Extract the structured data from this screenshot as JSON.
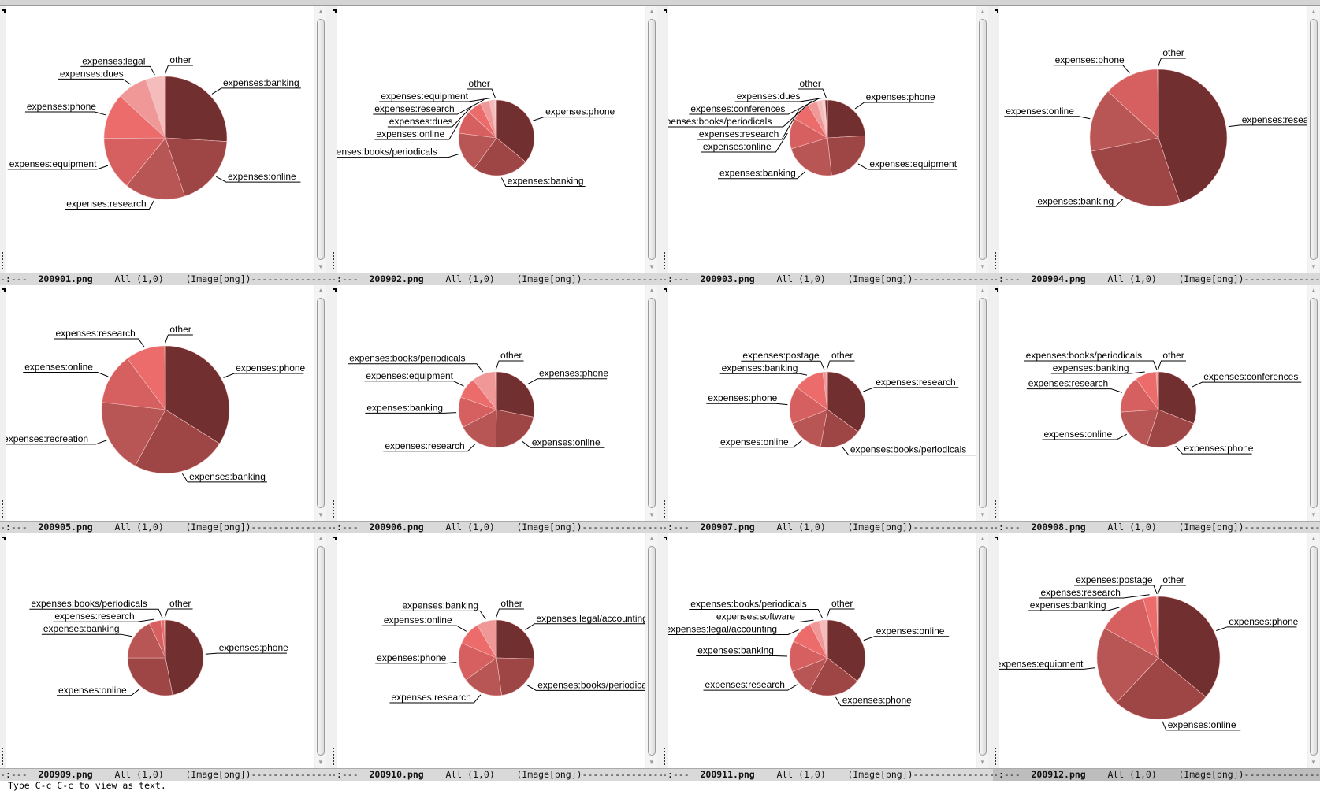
{
  "window": {
    "title": ""
  },
  "palette": [
    "#722f30",
    "#9e4646",
    "#b85555",
    "#d66060",
    "#ec6b6b",
    "#f09898",
    "#f5bcbc",
    "#f8d0d0"
  ],
  "echo_area": "Type C-c C-c to view as text.",
  "panels": [
    {
      "file": "200901.png",
      "mode_prefix": "-:---",
      "position": "All (1,0)",
      "mode": "(Image[png])",
      "active": false,
      "chart_data": {
        "type": "pie",
        "slices": [
          {
            "label": "expenses:banking",
            "value": 26
          },
          {
            "label": "expenses:online",
            "value": 19
          },
          {
            "label": "expenses:research",
            "value": 16
          },
          {
            "label": "expenses:equipment",
            "value": 14
          },
          {
            "label": "expenses:phone",
            "value": 12
          },
          {
            "label": "expenses:dues",
            "value": 8
          },
          {
            "label": "expenses:legal",
            "value": 5
          },
          {
            "label": "other",
            "value": 0.2
          }
        ]
      }
    },
    {
      "file": "200902.png",
      "mode_prefix": "-:---",
      "position": "All (1,0)",
      "mode": "(Image[png])",
      "active": false,
      "chart_data": {
        "type": "pie",
        "slices": [
          {
            "label": "expenses:phone",
            "value": 36
          },
          {
            "label": "expenses:banking",
            "value": 24
          },
          {
            "label": "expenses:books/periodicals",
            "value": 17
          },
          {
            "label": "expenses:online",
            "value": 10
          },
          {
            "label": "expenses:dues",
            "value": 6
          },
          {
            "label": "expenses:research",
            "value": 4
          },
          {
            "label": "expenses:equipment",
            "value": 2
          },
          {
            "label": "other",
            "value": 1
          }
        ]
      }
    },
    {
      "file": "200903.png",
      "mode_prefix": "-:---",
      "position": "All (1,0)",
      "mode": "(Image[png])",
      "active": false,
      "chart_data": {
        "type": "pie",
        "slices": [
          {
            "label": "expenses:phone",
            "value": 24
          },
          {
            "label": "expenses:equipment",
            "value": 24
          },
          {
            "label": "expenses:banking",
            "value": 22
          },
          {
            "label": "expenses:online",
            "value": 13
          },
          {
            "label": "expenses:research",
            "value": 8
          },
          {
            "label": "expenses:books/periodicals",
            "value": 4
          },
          {
            "label": "expenses:conferences",
            "value": 2
          },
          {
            "label": "expenses:dues",
            "value": 1.5
          },
          {
            "label": "other",
            "value": 1
          }
        ]
      }
    },
    {
      "file": "200904.png",
      "mode_prefix": "-:---",
      "position": "All (1,0)",
      "mode": "(Image[png])",
      "active": false,
      "chart_data": {
        "type": "pie",
        "slices": [
          {
            "label": "expenses:research",
            "value": 45
          },
          {
            "label": "expenses:banking",
            "value": 27
          },
          {
            "label": "expenses:online",
            "value": 15
          },
          {
            "label": "expenses:phone",
            "value": 13
          },
          {
            "label": "other",
            "value": 0.2
          }
        ]
      }
    },
    {
      "file": "200905.png",
      "mode_prefix": "-:---",
      "position": "All (1,0)",
      "mode": "(Image[png])",
      "active": false,
      "chart_data": {
        "type": "pie",
        "slices": [
          {
            "label": "expenses:phone",
            "value": 34
          },
          {
            "label": "expenses:banking",
            "value": 24
          },
          {
            "label": "expenses:recreation",
            "value": 19
          },
          {
            "label": "expenses:online",
            "value": 13
          },
          {
            "label": "expenses:research",
            "value": 10
          },
          {
            "label": "other",
            "value": 0.2
          }
        ]
      }
    },
    {
      "file": "200906.png",
      "mode_prefix": "-:---",
      "position": "All (1,0)",
      "mode": "(Image[png])",
      "active": false,
      "chart_data": {
        "type": "pie",
        "slices": [
          {
            "label": "expenses:phone",
            "value": 28
          },
          {
            "label": "expenses:online",
            "value": 22
          },
          {
            "label": "expenses:research",
            "value": 17
          },
          {
            "label": "expenses:banking",
            "value": 13
          },
          {
            "label": "expenses:equipment",
            "value": 9
          },
          {
            "label": "expenses:books/periodicals",
            "value": 10
          },
          {
            "label": "other",
            "value": 0.5
          }
        ]
      }
    },
    {
      "file": "200907.png",
      "mode_prefix": "-:---",
      "position": "All (1,0)",
      "mode": "(Image[png])",
      "active": false,
      "chart_data": {
        "type": "pie",
        "slices": [
          {
            "label": "expenses:research",
            "value": 35
          },
          {
            "label": "expenses:books/periodicals",
            "value": 18
          },
          {
            "label": "expenses:online",
            "value": 16
          },
          {
            "label": "expenses:phone",
            "value": 16
          },
          {
            "label": "expenses:banking",
            "value": 13
          },
          {
            "label": "expenses:postage",
            "value": 1.5
          },
          {
            "label": "other",
            "value": 0.5
          }
        ]
      }
    },
    {
      "file": "200908.png",
      "mode_prefix": "-:---",
      "position": "All (1,0)",
      "mode": "(Image[png])",
      "active": false,
      "chart_data": {
        "type": "pie",
        "slices": [
          {
            "label": "expenses:conferences",
            "value": 31
          },
          {
            "label": "expenses:phone",
            "value": 24
          },
          {
            "label": "expenses:online",
            "value": 19
          },
          {
            "label": "expenses:research",
            "value": 16
          },
          {
            "label": "expenses:banking",
            "value": 9
          },
          {
            "label": "expenses:books/periodicals",
            "value": 0.7
          },
          {
            "label": "other",
            "value": 0.3
          }
        ]
      }
    },
    {
      "file": "200909.png",
      "mode_prefix": "-:---",
      "position": "All (1,0)",
      "mode": "(Image[png])",
      "active": false,
      "chart_data": {
        "type": "pie",
        "slices": [
          {
            "label": "expenses:phone",
            "value": 47
          },
          {
            "label": "expenses:online",
            "value": 28
          },
          {
            "label": "expenses:banking",
            "value": 18
          },
          {
            "label": "expenses:research",
            "value": 5
          },
          {
            "label": "expenses:books/periodicals",
            "value": 1.5
          },
          {
            "label": "other",
            "value": 0.5
          }
        ]
      }
    },
    {
      "file": "200910.png",
      "mode_prefix": "-:---",
      "position": "All (1,0)",
      "mode": "(Image[png])",
      "active": false,
      "chart_data": {
        "type": "pie",
        "slices": [
          {
            "label": "expenses:legal/accounting",
            "value": 25
          },
          {
            "label": "expenses:books/periodicals",
            "value": 22
          },
          {
            "label": "expenses:research",
            "value": 17
          },
          {
            "label": "expenses:phone",
            "value": 16
          },
          {
            "label": "expenses:online",
            "value": 10
          },
          {
            "label": "expenses:banking",
            "value": 8
          },
          {
            "label": "other",
            "value": 0.3
          }
        ]
      }
    },
    {
      "file": "200911.png",
      "mode_prefix": "-:---",
      "position": "All (1,0)",
      "mode": "(Image[png])",
      "active": false,
      "chart_data": {
        "type": "pie",
        "slices": [
          {
            "label": "expenses:online",
            "value": 35
          },
          {
            "label": "expenses:phone",
            "value": 22
          },
          {
            "label": "expenses:research",
            "value": 11
          },
          {
            "label": "expenses:banking",
            "value": 13
          },
          {
            "label": "expenses:legal/accounting",
            "value": 10
          },
          {
            "label": "expenses:software",
            "value": 4
          },
          {
            "label": "expenses:books/periodicals",
            "value": 3
          },
          {
            "label": "other",
            "value": 0.5
          }
        ]
      }
    },
    {
      "file": "200912.png",
      "mode_prefix": "-:---",
      "position": "All (1,0)",
      "mode": "(Image[png])",
      "active": true,
      "chart_data": {
        "type": "pie",
        "slices": [
          {
            "label": "expenses:phone",
            "value": 36
          },
          {
            "label": "expenses:online",
            "value": 26
          },
          {
            "label": "expenses:equipment",
            "value": 21
          },
          {
            "label": "expenses:banking",
            "value": 13
          },
          {
            "label": "expenses:research",
            "value": 3.5
          },
          {
            "label": "expenses:postage",
            "value": 0.3
          },
          {
            "label": "other",
            "value": 0.2
          }
        ]
      }
    }
  ]
}
